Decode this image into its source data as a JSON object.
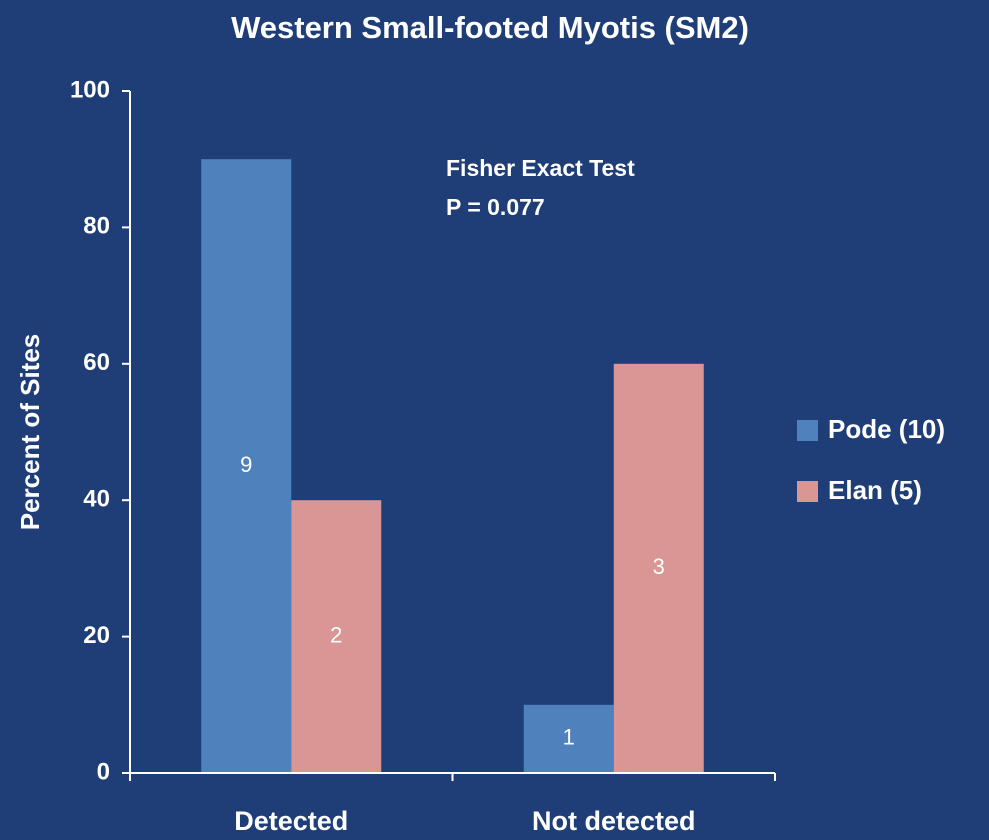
{
  "chart_data": {
    "type": "bar",
    "title": "Western Small-footed Myotis (SM2)",
    "y_label": "Percent of Sites",
    "annotations": [
      "Fisher Exact Test",
      "P = 0.077"
    ],
    "categories": [
      "Detected",
      "Not detected"
    ],
    "series": [
      {
        "name": "Pode (10)",
        "color": "#4f81bd",
        "values": [
          90,
          10
        ],
        "counts": [
          9,
          1
        ]
      },
      {
        "name": "Elan (5)",
        "color": "#d99694",
        "values": [
          40,
          60
        ],
        "counts": [
          2,
          3
        ]
      }
    ],
    "ylim": [
      0,
      100
    ],
    "yticks": [
      0,
      20,
      40,
      60,
      80,
      100
    ],
    "legend": "right"
  }
}
